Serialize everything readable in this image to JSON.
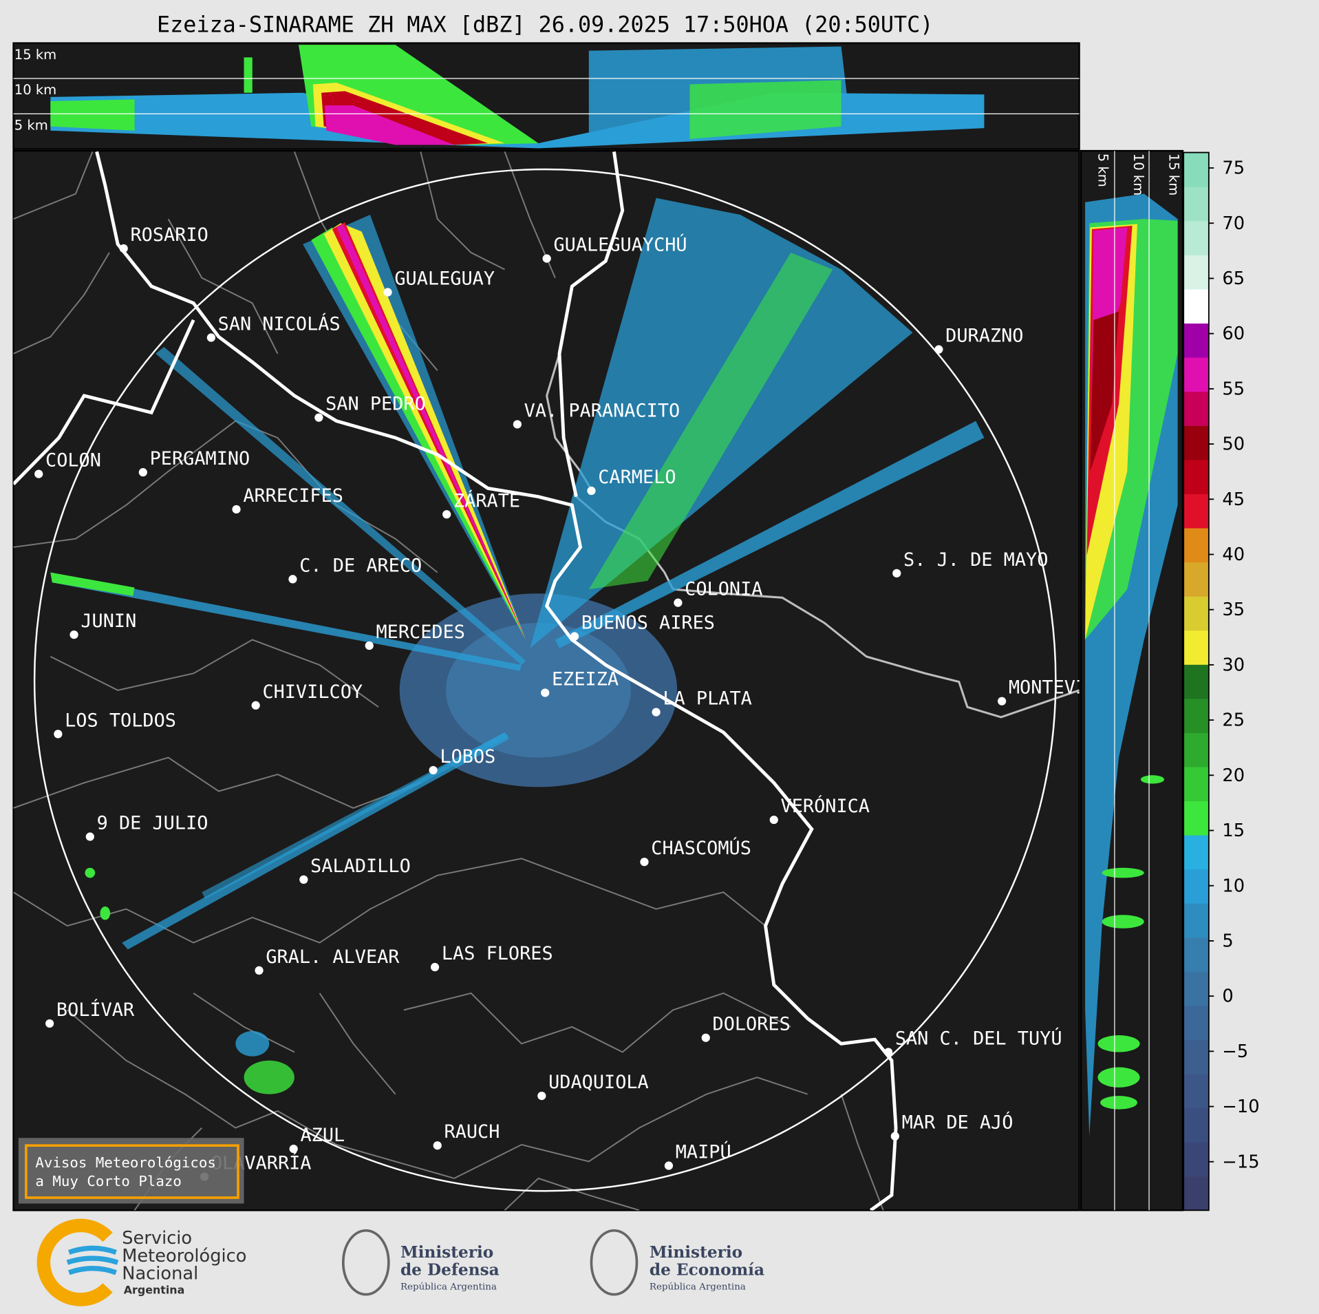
{
  "title": "Ezeiza-SINARAME ZH MAX [dBZ] 26.09.2025 17:50HOA (20:50UTC)",
  "vertical_profile": {
    "height_labels": [
      "15 km",
      "10 km",
      "5 km"
    ]
  },
  "side_profile": {
    "height_labels": [
      "5 km",
      "10 km",
      "15 km"
    ]
  },
  "map": {
    "cities": [
      "ROSARIO",
      "GUALEGUAYCHÚ",
      "GUALEGUAY",
      "SAN NICOLÁS",
      "DURAZNO",
      "SAN PEDRO",
      "VA. PARANACITO",
      "COLON",
      "PERGAMINO",
      "CARMELO",
      "ARRECIFES",
      "ZÁRATE",
      "S. J. DE MAYO",
      "C. DE ARECO",
      "COLONIA",
      "BUENOS AIRES",
      "JUNIN",
      "MERCEDES",
      "MONTEVIDEO",
      "EZEIZA",
      "CHIVILCOY",
      "LA PLATA",
      "LOS TOLDOS",
      "LOBOS",
      "VERÓNICA",
      "9 DE JULIO",
      "CHASCOMÚS",
      "SALADILLO",
      "GRAL. ALVEAR",
      "LAS FLORES",
      "BOLÍVAR",
      "DOLORES",
      "SAN C. DEL TUYÚ",
      "UDAQUIOLA",
      "MAR DE AJÓ",
      "RAUCH",
      "AZUL",
      "OLAVARRÍA",
      "MAIPÚ"
    ]
  },
  "colorbar": {
    "range": [
      -19.4,
      76.4
    ],
    "ticks": [
      75,
      70,
      65,
      60,
      55,
      50,
      45,
      40,
      35,
      30,
      25,
      20,
      15,
      10,
      5,
      0,
      {
        "value": -5,
        "label": "−5"
      },
      {
        "value": -10,
        "label": "−10"
      },
      {
        "value": -15,
        "label": "−15"
      }
    ],
    "colors": [
      "#3b3f6c",
      "#3a4676",
      "#3b4e80",
      "#3c5688",
      "#3c5f90",
      "#3b6898",
      "#3a72a2",
      "#367eae",
      "#2f8cbe",
      "#2a9ed6",
      "#28b0e0",
      "#3de63d",
      "#35c935",
      "#2eaa2e",
      "#268f26",
      "#1f741f",
      "#f2ec30",
      "#d8cc30",
      "#d8a82a",
      "#e08a18",
      "#e0102a",
      "#c00018",
      "#98000e",
      "#c8005a",
      "#e010b0",
      "#a000a8",
      "#ffffff",
      "#d8f2e6",
      "#b8ead6",
      "#9ee2c6",
      "#88dcbc"
    ]
  },
  "notice": {
    "lines": [
      "Avisos Meteorológicos",
      "a Muy Corto Plazo"
    ]
  },
  "footer": {
    "smn": {
      "lines": [
        "Servicio",
        "Meteorológico",
        "Nacional"
      ],
      "country": "Argentina"
    },
    "defensa": {
      "lines": [
        "Ministerio",
        "de Defensa"
      ],
      "country": "República Argentina"
    },
    "economia": {
      "lines": [
        "Ministerio",
        "de Economía"
      ],
      "country": "República Argentina"
    }
  }
}
